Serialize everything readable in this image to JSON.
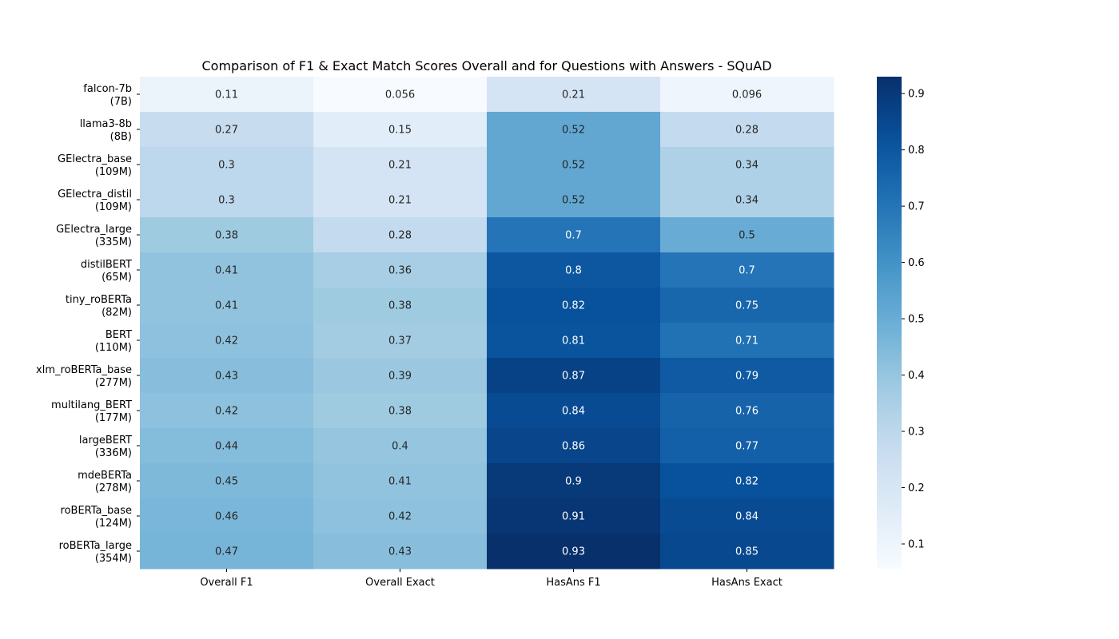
{
  "chart_data": {
    "type": "heatmap",
    "title": "Comparison of F1 & Exact Match Scores Overall and for Questions with Answers - SQuAD",
    "xlabel": "",
    "ylabel": "",
    "columns": [
      "Overall F1",
      "Overall Exact",
      "HasAns F1",
      "HasAns Exact"
    ],
    "rows": [
      {
        "name": "falcon-7b",
        "size": "(7B)"
      },
      {
        "name": "llama3-8b",
        "size": "(8B)"
      },
      {
        "name": "GElectra_base",
        "size": "(109M)"
      },
      {
        "name": "GElectra_distil",
        "size": "(109M)"
      },
      {
        "name": "GElectra_large",
        "size": "(335M)"
      },
      {
        "name": "distilBERT",
        "size": "(65M)"
      },
      {
        "name": "tiny_roBERTa",
        "size": "(82M)"
      },
      {
        "name": "BERT",
        "size": "(110M)"
      },
      {
        "name": "xlm_roBERTa_base",
        "size": "(277M)"
      },
      {
        "name": "multilang_BERT",
        "size": "(177M)"
      },
      {
        "name": "largeBERT",
        "size": "(336M)"
      },
      {
        "name": "mdeBERTa",
        "size": "(278M)"
      },
      {
        "name": "roBERTa_base",
        "size": "(124M)"
      },
      {
        "name": "roBERTa_large",
        "size": "(354M)"
      }
    ],
    "values": [
      [
        "0.11",
        "0.056",
        "0.21",
        "0.096"
      ],
      [
        "0.27",
        "0.15",
        "0.52",
        "0.28"
      ],
      [
        "0.3",
        "0.21",
        "0.52",
        "0.34"
      ],
      [
        "0.3",
        "0.21",
        "0.52",
        "0.34"
      ],
      [
        "0.38",
        "0.28",
        "0.7",
        "0.5"
      ],
      [
        "0.41",
        "0.36",
        "0.8",
        "0.7"
      ],
      [
        "0.41",
        "0.38",
        "0.82",
        "0.75"
      ],
      [
        "0.42",
        "0.37",
        "0.81",
        "0.71"
      ],
      [
        "0.43",
        "0.39",
        "0.87",
        "0.79"
      ],
      [
        "0.42",
        "0.38",
        "0.84",
        "0.76"
      ],
      [
        "0.44",
        "0.4",
        "0.86",
        "0.77"
      ],
      [
        "0.45",
        "0.41",
        "0.9",
        "0.82"
      ],
      [
        "0.46",
        "0.42",
        "0.91",
        "0.84"
      ],
      [
        "0.47",
        "0.43",
        "0.93",
        "0.85"
      ]
    ],
    "colorbar": {
      "colormap": "Blues",
      "range": [
        0.056,
        0.93
      ],
      "ticks": [
        "0.1",
        "0.2",
        "0.3",
        "0.4",
        "0.5",
        "0.6",
        "0.7",
        "0.8",
        "0.9"
      ]
    },
    "grid": false,
    "legend": "colorbar-right"
  }
}
